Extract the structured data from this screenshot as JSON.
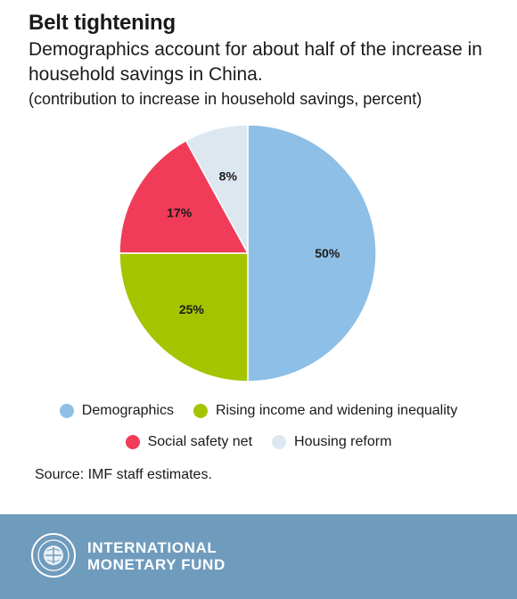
{
  "header": {
    "title": "Belt tightening",
    "subtitle": "Demographics account for about half of the increase in household savings in China.",
    "units": "(contribution to increase in household savings, percent)"
  },
  "chart_data": {
    "type": "pie",
    "start_angle_deg": 0,
    "direction": "clockwise",
    "slices": [
      {
        "name": "Demographics",
        "value": 50,
        "label": "50%",
        "color": "#8ebfe6"
      },
      {
        "name": "Rising income and widening inequality",
        "value": 25,
        "label": "25%",
        "color": "#a4c400"
      },
      {
        "name": "Social safety net",
        "value": 17,
        "label": "17%",
        "color": "#f03c58"
      },
      {
        "name": "Housing reform",
        "value": 8,
        "label": "8%",
        "color": "#dde7f0"
      }
    ],
    "legend": {
      "position": "bottom",
      "rows": [
        [
          "Demographics",
          "Rising income and widening inequality"
        ],
        [
          "Social safety net",
          "Housing reform"
        ]
      ]
    }
  },
  "source": "Source: IMF staff estimates.",
  "footer": {
    "org_line1": "INTERNATIONAL",
    "org_line2": "MONETARY FUND",
    "background": "#6f9bbd",
    "logo": "imf-seal-icon"
  }
}
